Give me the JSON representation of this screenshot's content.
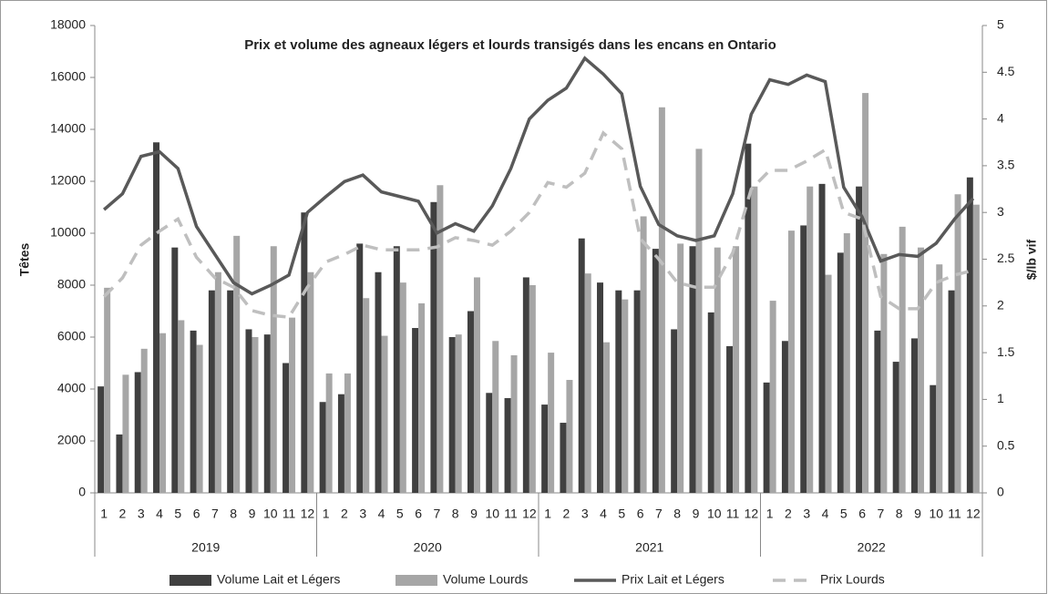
{
  "chart_data": {
    "type": "bar-line",
    "title": "Prix et volume des agneaux légers et lourds transigés dans les encans en Ontario",
    "y_label": "Têtes",
    "y2_label": "$/lb vif",
    "categories": [
      "1",
      "2",
      "3",
      "4",
      "5",
      "6",
      "7",
      "8",
      "9",
      "10",
      "11",
      "12",
      "1",
      "2",
      "3",
      "4",
      "5",
      "6",
      "7",
      "8",
      "9",
      "10",
      "11",
      "12",
      "1",
      "2",
      "3",
      "4",
      "5",
      "6",
      "7",
      "8",
      "9",
      "10",
      "11",
      "12",
      "1",
      "2",
      "3",
      "4",
      "5",
      "6",
      "7",
      "8",
      "9",
      "10",
      "11",
      "12"
    ],
    "groups": [
      "2019",
      "2020",
      "2021",
      "2022"
    ],
    "ylim": [
      0,
      18000
    ],
    "yticks": [
      0,
      2000,
      4000,
      6000,
      8000,
      10000,
      12000,
      14000,
      16000,
      18000
    ],
    "y2lim": [
      0,
      5
    ],
    "y2ticks": [
      0,
      0.5,
      1,
      1.5,
      2,
      2.5,
      3,
      3.5,
      4,
      4.5,
      5
    ],
    "grid": false,
    "legend": "bottom",
    "series": [
      {
        "name": "Volume Lait et Légers",
        "kind": "bar",
        "color": "#404040",
        "values": [
          4100,
          2250,
          4650,
          13500,
          9450,
          6250,
          7800,
          7800,
          6300,
          6100,
          5000,
          10800,
          3500,
          3800,
          9600,
          8500,
          9500,
          6350,
          11200,
          6000,
          7000,
          3850,
          3650,
          8300,
          3400,
          2700,
          9800,
          8100,
          7800,
          7800,
          9400,
          6300,
          9500,
          6950,
          5650,
          13450,
          4250,
          5850,
          10300,
          11900,
          9250,
          11800,
          6250,
          5050,
          5950,
          4150,
          7800,
          12150
        ]
      },
      {
        "name": "Volume Lourds",
        "kind": "bar",
        "color": "#a6a6a6",
        "values": [
          7900,
          4550,
          5550,
          6150,
          6650,
          5700,
          8500,
          9900,
          6000,
          9500,
          6750,
          8500,
          4600,
          4600,
          7500,
          6050,
          8100,
          7300,
          11850,
          6100,
          8300,
          5850,
          5300,
          8000,
          5400,
          4350,
          8450,
          5800,
          7450,
          10650,
          14850,
          9600,
          13250,
          9450,
          9500,
          11800,
          7400,
          10100,
          11800,
          8400,
          10000,
          15400,
          9200,
          10250,
          9450,
          8800,
          11500,
          11100
        ]
      },
      {
        "name": "Prix Lait et Légers",
        "kind": "line",
        "axis": "y2",
        "color": "#595959",
        "values": [
          3.03,
          3.2,
          3.6,
          3.65,
          3.47,
          2.85,
          2.55,
          2.25,
          2.13,
          2.22,
          2.33,
          3.0,
          3.17,
          3.33,
          3.4,
          3.22,
          3.17,
          3.12,
          2.78,
          2.88,
          2.8,
          3.07,
          3.47,
          4.0,
          4.2,
          4.33,
          4.65,
          4.48,
          4.27,
          3.28,
          2.87,
          2.75,
          2.7,
          2.75,
          3.2,
          4.05,
          4.42,
          4.37,
          4.47,
          4.4,
          3.27,
          2.95,
          2.48,
          2.55,
          2.53,
          2.67,
          2.93,
          3.15
        ]
      },
      {
        "name": "Prix Lourds",
        "kind": "line",
        "dashed": true,
        "axis": "y2",
        "color": "#bfbfbf",
        "values": [
          2.1,
          2.3,
          2.65,
          2.8,
          2.93,
          2.52,
          2.3,
          2.2,
          1.95,
          1.9,
          1.88,
          2.2,
          2.47,
          2.55,
          2.65,
          2.6,
          2.6,
          2.6,
          2.63,
          2.73,
          2.7,
          2.65,
          2.8,
          3.0,
          3.32,
          3.27,
          3.42,
          3.85,
          3.68,
          2.72,
          2.5,
          2.25,
          2.2,
          2.2,
          2.57,
          3.25,
          3.45,
          3.45,
          3.55,
          3.67,
          3.0,
          2.93,
          2.1,
          1.97,
          1.97,
          2.25,
          2.33,
          2.38
        ]
      }
    ]
  }
}
